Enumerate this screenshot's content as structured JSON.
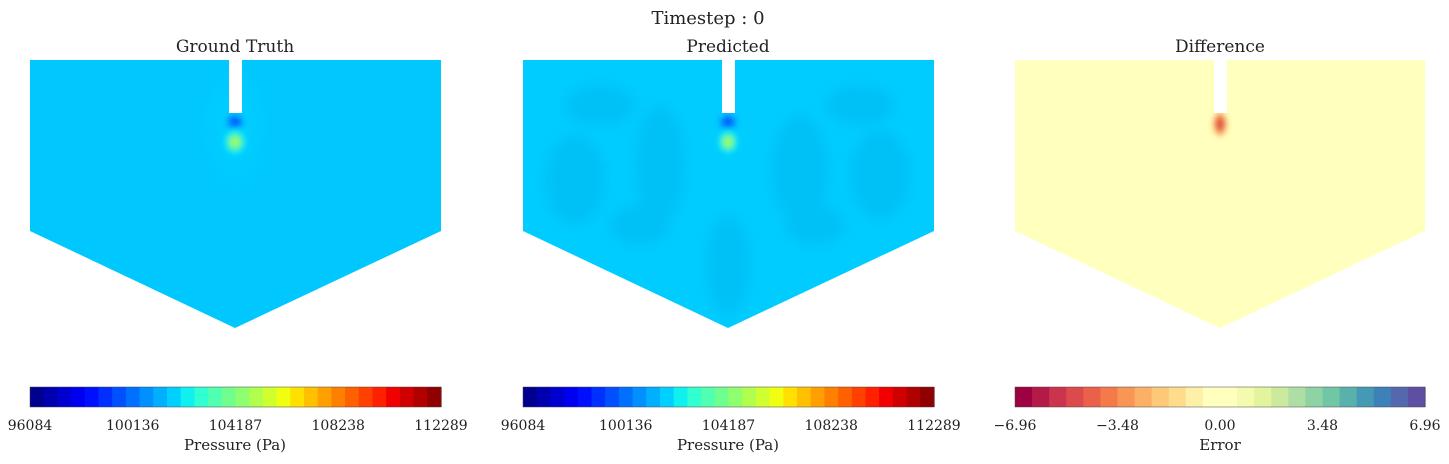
{
  "figure": {
    "title": "Timestep : 0"
  },
  "panels": [
    {
      "title": "Ground Truth",
      "field": "pressure",
      "colorbar": {
        "colormap": "jet",
        "label": "Pressure (Pa)",
        "ticks": [
          "96084",
          "100136",
          "104187",
          "108238",
          "112289"
        ]
      }
    },
    {
      "title": "Predicted",
      "field": "pressure",
      "colorbar": {
        "colormap": "jet",
        "label": "Pressure (Pa)",
        "ticks": [
          "96084",
          "100136",
          "104187",
          "108238",
          "112289"
        ]
      }
    },
    {
      "title": "Difference",
      "field": "error",
      "colorbar": {
        "colormap": "spectral",
        "label": "Error",
        "ticks": [
          "−6.96",
          "−3.48",
          "0.00",
          "3.48",
          "6.96"
        ]
      }
    }
  ],
  "colors": {
    "pressure_background": "#00c8ff",
    "predicted_background": "#00ccff",
    "difference_background": "#ffffbe",
    "nozzle": "#ffffff"
  }
}
